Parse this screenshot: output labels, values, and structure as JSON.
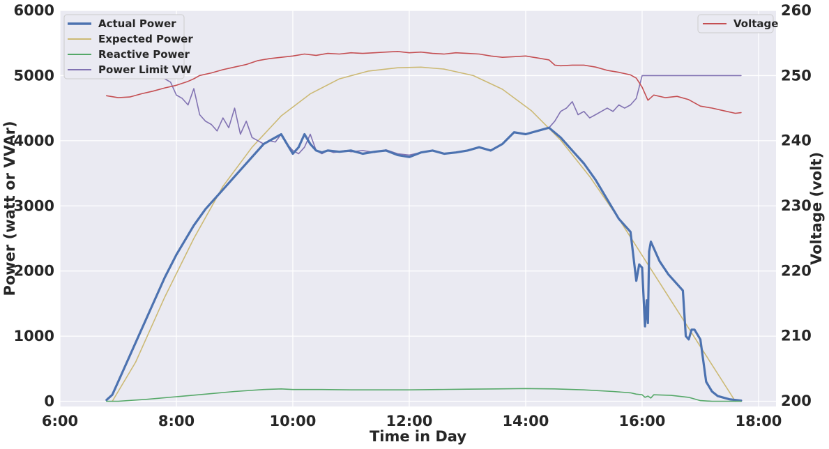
{
  "chart_data": {
    "type": "line",
    "xlabel": "Time in Day",
    "ylabel_left": "Power (watt or VVAr)",
    "ylabel_right": "Voltage (volt)",
    "x_unit": "hour of day",
    "xlim": [
      6.0,
      18.3
    ],
    "ylim_left": [
      -80,
      6000
    ],
    "ylim_right": [
      199.15,
      260
    ],
    "x_ticks": [
      {
        "value": 6,
        "label": "6:00"
      },
      {
        "value": 8,
        "label": "8:00"
      },
      {
        "value": 10,
        "label": "10:00"
      },
      {
        "value": 12,
        "label": "12:00"
      },
      {
        "value": 14,
        "label": "14:00"
      },
      {
        "value": 16,
        "label": "16:00"
      },
      {
        "value": 18,
        "label": "18:00"
      }
    ],
    "y_ticks_left": [
      {
        "value": 0,
        "label": "0"
      },
      {
        "value": 1000,
        "label": "1000"
      },
      {
        "value": 2000,
        "label": "2000"
      },
      {
        "value": 3000,
        "label": "3000"
      },
      {
        "value": 4000,
        "label": "4000"
      },
      {
        "value": 5000,
        "label": "5000"
      },
      {
        "value": 6000,
        "label": "6000"
      }
    ],
    "y_ticks_right": [
      {
        "value": 200,
        "label": "200"
      },
      {
        "value": 210,
        "label": "210"
      },
      {
        "value": 220,
        "label": "220"
      },
      {
        "value": 230,
        "label": "230"
      },
      {
        "value": 240,
        "label": "240"
      },
      {
        "value": 250,
        "label": "250"
      },
      {
        "value": 260,
        "label": "260"
      }
    ],
    "grid": true,
    "legend_left_position": "top-left",
    "legend_right_position": "top-right",
    "series": [
      {
        "name": "Expected Power",
        "axis": "left",
        "color": "#ccb974",
        "width": 1.6,
        "x": [
          6.9,
          7.3,
          7.8,
          8.3,
          8.8,
          9.3,
          9.8,
          10.3,
          10.8,
          11.3,
          11.8,
          12.2,
          12.6,
          13.1,
          13.6,
          14.1,
          14.6,
          15.1,
          15.6,
          16.1,
          16.6,
          17.1,
          17.6
        ],
        "values": [
          0,
          600,
          1600,
          2500,
          3300,
          3900,
          4380,
          4720,
          4950,
          5070,
          5120,
          5130,
          5100,
          5000,
          4790,
          4460,
          4010,
          3450,
          2800,
          2100,
          1400,
          700,
          0
        ]
      },
      {
        "name": "Power Limit VW",
        "axis": "left",
        "color": "#8172b2",
        "width": 1.6,
        "x": [
          7.8,
          7.9,
          8.0,
          8.1,
          8.2,
          8.3,
          8.4,
          8.5,
          8.6,
          8.7,
          8.8,
          8.9,
          9.0,
          9.1,
          9.2,
          9.3,
          9.4,
          9.5,
          9.6,
          9.7,
          9.8,
          9.9,
          10.0,
          10.1,
          10.2,
          10.3,
          10.4,
          10.5,
          10.6,
          10.7,
          10.8,
          10.9,
          11.0,
          11.2,
          11.4,
          11.6,
          11.8,
          12.0,
          12.2,
          12.4,
          12.6,
          12.8,
          13.0,
          13.2,
          13.4,
          13.6,
          13.8,
          14.0,
          14.2,
          14.4,
          14.5,
          14.6,
          14.7,
          14.8,
          14.9,
          15.0,
          15.1,
          15.2,
          15.3,
          15.4,
          15.5,
          15.6,
          15.7,
          15.8,
          15.9,
          16.0,
          16.3,
          16.6,
          16.9,
          17.2,
          17.5,
          17.7
        ],
        "values": [
          4950,
          4900,
          4700,
          4650,
          4550,
          4800,
          4400,
          4300,
          4250,
          4150,
          4350,
          4200,
          4500,
          4100,
          4300,
          4050,
          4000,
          3950,
          4000,
          3980,
          4100,
          3950,
          3850,
          3800,
          3900,
          4100,
          3850,
          3800,
          3850,
          3820,
          3830,
          3850,
          3830,
          3850,
          3820,
          3860,
          3800,
          3780,
          3820,
          3850,
          3800,
          3820,
          3850,
          3900,
          3850,
          3950,
          4120,
          4100,
          4150,
          4200,
          4300,
          4450,
          4500,
          4600,
          4400,
          4450,
          4350,
          4400,
          4450,
          4500,
          4450,
          4550,
          4500,
          4550,
          4650,
          5000,
          5000,
          5000,
          5000,
          5000,
          5000,
          5000
        ]
      },
      {
        "name": "Actual Power",
        "axis": "left",
        "color": "#4c72b0",
        "width": 3.2,
        "x": [
          6.8,
          6.9,
          7.0,
          7.2,
          7.5,
          7.8,
          8.0,
          8.3,
          8.5,
          8.8,
          9.0,
          9.3,
          9.5,
          9.7,
          9.8,
          9.9,
          10.0,
          10.1,
          10.2,
          10.3,
          10.4,
          10.5,
          10.6,
          10.8,
          11.0,
          11.2,
          11.4,
          11.6,
          11.8,
          12.0,
          12.2,
          12.4,
          12.6,
          12.8,
          13.0,
          13.2,
          13.4,
          13.6,
          13.8,
          14.0,
          14.2,
          14.4,
          14.6,
          14.8,
          15.0,
          15.2,
          15.4,
          15.6,
          15.8,
          15.9,
          15.95,
          16.0,
          16.05,
          16.08,
          16.1,
          16.12,
          16.15,
          16.2,
          16.3,
          16.45,
          16.6,
          16.7,
          16.75,
          16.8,
          16.85,
          16.9,
          17.0,
          17.1,
          17.2,
          17.3,
          17.5,
          17.7
        ],
        "values": [
          20,
          100,
          300,
          700,
          1300,
          1900,
          2250,
          2700,
          2950,
          3250,
          3450,
          3750,
          3950,
          4050,
          4100,
          3950,
          3800,
          3900,
          4100,
          3950,
          3850,
          3820,
          3850,
          3830,
          3850,
          3800,
          3830,
          3850,
          3780,
          3750,
          3820,
          3850,
          3800,
          3820,
          3850,
          3900,
          3850,
          3950,
          4130,
          4100,
          4150,
          4200,
          4050,
          3850,
          3650,
          3400,
          3100,
          2800,
          2600,
          1850,
          2100,
          2050,
          1150,
          1550,
          1200,
          2300,
          2450,
          2350,
          2150,
          1950,
          1800,
          1700,
          1000,
          950,
          1100,
          1100,
          950,
          300,
          150,
          80,
          30,
          10
        ]
      },
      {
        "name": "Reactive Power",
        "axis": "left",
        "color": "#55a868",
        "width": 1.6,
        "x": [
          6.8,
          7.0,
          7.5,
          8.0,
          8.5,
          9.0,
          9.5,
          9.8,
          10.0,
          10.5,
          11.0,
          11.5,
          12.0,
          12.5,
          13.0,
          13.5,
          14.0,
          14.5,
          15.0,
          15.5,
          15.8,
          15.9,
          16.0,
          16.05,
          16.1,
          16.15,
          16.2,
          16.5,
          16.8,
          17.0,
          17.2,
          17.5,
          17.7
        ],
        "values": [
          0,
          0,
          30,
          70,
          110,
          150,
          180,
          190,
          180,
          180,
          175,
          175,
          175,
          180,
          185,
          190,
          195,
          190,
          175,
          150,
          130,
          110,
          100,
          60,
          80,
          50,
          100,
          90,
          60,
          10,
          0,
          0,
          0
        ]
      },
      {
        "name": "Voltage",
        "axis": "right",
        "color": "#c44e52",
        "width": 1.6,
        "x": [
          6.8,
          7.0,
          7.2,
          7.4,
          7.6,
          7.8,
          8.0,
          8.2,
          8.3,
          8.4,
          8.6,
          8.8,
          9.0,
          9.2,
          9.4,
          9.6,
          9.8,
          10.0,
          10.2,
          10.4,
          10.6,
          10.8,
          11.0,
          11.2,
          11.4,
          11.6,
          11.8,
          12.0,
          12.2,
          12.4,
          12.6,
          12.8,
          13.0,
          13.2,
          13.4,
          13.6,
          13.8,
          14.0,
          14.2,
          14.4,
          14.5,
          14.6,
          14.8,
          15.0,
          15.2,
          15.4,
          15.6,
          15.8,
          15.9,
          16.0,
          16.1,
          16.2,
          16.4,
          16.6,
          16.8,
          17.0,
          17.2,
          17.4,
          17.6,
          17.7
        ],
        "values": [
          246.9,
          246.6,
          246.7,
          247.2,
          247.6,
          248.1,
          248.5,
          249.1,
          249.5,
          250.0,
          250.4,
          250.9,
          251.3,
          251.7,
          252.3,
          252.6,
          252.8,
          253.0,
          253.3,
          253.1,
          253.4,
          253.3,
          253.5,
          253.4,
          253.5,
          253.6,
          253.7,
          253.5,
          253.6,
          253.4,
          253.3,
          253.5,
          253.4,
          253.3,
          253.0,
          252.8,
          252.9,
          253.0,
          252.7,
          252.4,
          251.6,
          251.5,
          251.6,
          251.6,
          251.3,
          250.8,
          250.5,
          250.1,
          249.6,
          248.2,
          246.2,
          247.0,
          246.6,
          246.8,
          246.3,
          245.3,
          245.0,
          244.6,
          244.2,
          244.3
        ]
      }
    ],
    "legend_left": [
      "Actual Power",
      "Expected Power",
      "Reactive Power",
      "Power Limit VW"
    ],
    "legend_right": [
      "Voltage"
    ]
  }
}
